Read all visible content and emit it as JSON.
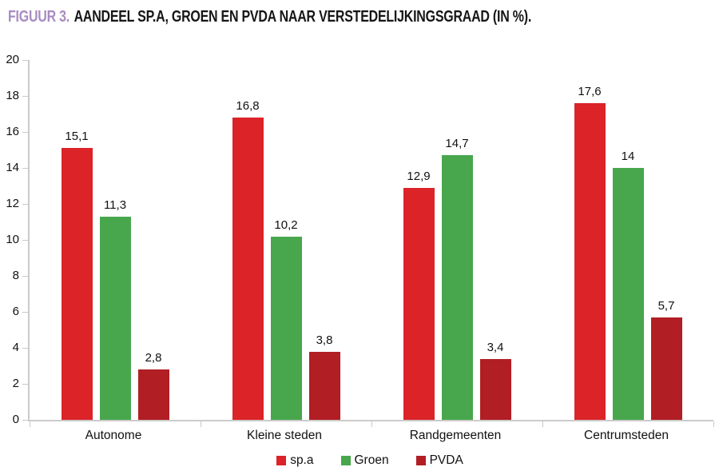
{
  "title": {
    "figure_label": "FIGUUR 3.",
    "caption": "AANDEEL SP.A, GROEN EN PVDA NAAR VERSTEDELIJKINGSGRAAD (IN %)."
  },
  "colors": {
    "figure_label_purple": "#A88CC0",
    "title_black": "#161616",
    "axis_gray": "#CBCBCB",
    "spa_red": "#DB2328",
    "groen_green": "#48A64D",
    "pvda_dark_red": "#B11E23"
  },
  "chart_data": {
    "type": "bar",
    "title": "FIGUUR 3. AANDEEL SP.A, GROEN EN PVDA NAAR VERSTEDELIJKINGSGRAAD (IN %).",
    "categories": [
      "Autonome",
      "Kleine steden",
      "Randgemeenten",
      "Centrumsteden"
    ],
    "series": [
      {
        "name": "sp.a",
        "color": "#DB2328",
        "values": [
          15.1,
          16.8,
          12.9,
          17.6
        ],
        "value_labels": [
          "15,1",
          "16,8",
          "12,9",
          "17,6"
        ]
      },
      {
        "name": "Groen",
        "color": "#48A64D",
        "values": [
          11.3,
          10.2,
          14.7,
          14
        ],
        "value_labels": [
          "11,3",
          "10,2",
          "14,7",
          "14"
        ]
      },
      {
        "name": "PVDA",
        "color": "#B11E23",
        "values": [
          2.8,
          3.8,
          3.4,
          5.7
        ],
        "value_labels": [
          "2,8",
          "3,8",
          "3,4",
          "5,7"
        ]
      }
    ],
    "xlabel": "",
    "ylabel": "",
    "ylim": [
      0,
      20
    ],
    "yticks": [
      0,
      2,
      4,
      6,
      8,
      10,
      12,
      14,
      16,
      18,
      20
    ],
    "grid": false,
    "legend_position": "bottom"
  }
}
